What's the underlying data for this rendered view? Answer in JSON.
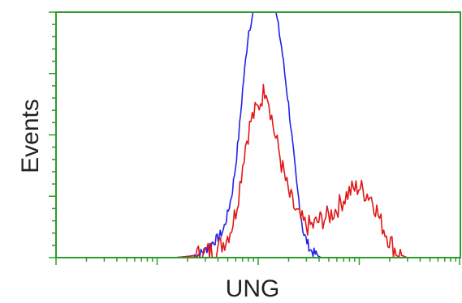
{
  "chart_data": {
    "type": "line",
    "title": "",
    "xlabel": "UNG",
    "ylabel": "Events",
    "x_scale": "log",
    "xlim": [
      1,
      10000
    ],
    "ylim": [
      0,
      100
    ],
    "grid": false,
    "frame_color": "#2e9b2e",
    "series": [
      {
        "color": "#2323e6",
        "x": [
          1,
          8,
          15,
          20,
          25,
          30,
          35,
          40,
          45,
          50,
          55,
          60,
          65,
          70,
          75,
          80,
          90,
          100,
          110,
          130,
          150,
          170,
          200,
          240,
          280,
          330,
          380,
          420
        ],
        "y": [
          0,
          0,
          0,
          0.5,
          1,
          3,
          6,
          8,
          11,
          18,
          26,
          38,
          52,
          68,
          80,
          92,
          100,
          100,
          100,
          100,
          100,
          86,
          62,
          30,
          10,
          3,
          1,
          0
        ]
      },
      {
        "color": "#e01818",
        "x": [
          1,
          5,
          10,
          15,
          20,
          25,
          30,
          35,
          40,
          45,
          50,
          55,
          60,
          65,
          70,
          75,
          80,
          85,
          90,
          95,
          100,
          110,
          120,
          130,
          140,
          150,
          160,
          170,
          180,
          190,
          200,
          220,
          240,
          260,
          280,
          300,
          350,
          400,
          500,
          600,
          700,
          800,
          900,
          1000,
          1100,
          1200,
          1300,
          1400,
          1500,
          1600,
          1800,
          2000,
          2200,
          2400,
          2600,
          2800,
          3000,
          3300,
          3600
        ],
        "y": [
          0,
          0,
          0,
          0,
          0.5,
          1,
          2,
          3,
          4,
          6,
          9,
          13,
          19,
          28,
          38,
          46,
          51,
          56,
          58,
          60,
          61,
          66,
          70,
          62,
          54,
          48,
          44,
          38,
          34,
          30,
          26,
          22,
          18,
          16,
          14,
          13,
          13,
          15,
          17,
          20,
          24,
          27,
          28,
          29,
          27,
          26,
          25,
          22,
          19,
          15,
          11,
          7,
          4,
          2,
          1,
          0.5,
          0,
          0,
          0
        ]
      }
    ]
  }
}
